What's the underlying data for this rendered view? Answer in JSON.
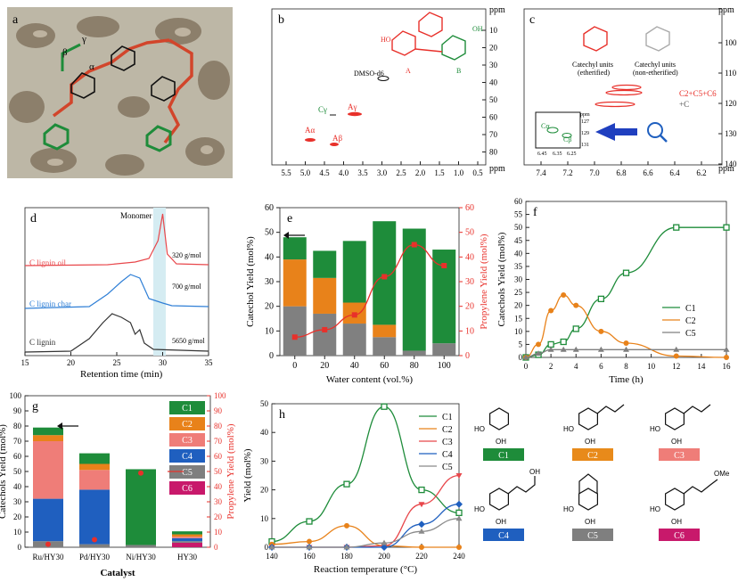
{
  "panels": {
    "a": {
      "letter": "a",
      "greek": [
        "γ",
        "β",
        "α"
      ]
    },
    "b": {
      "letter": "b",
      "unit_y": "ppm",
      "unit_x": "ppm",
      "yticks": [
        "10",
        "20",
        "30",
        "40",
        "50",
        "60",
        "70",
        "80"
      ],
      "xticks": [
        "5.5",
        "5.0",
        "4.5",
        "4.0",
        "3.5",
        "3.0",
        "2.5",
        "2.0",
        "1.5",
        "1.0",
        "0.5"
      ],
      "labels": {
        "dmso": "DMSO-d6",
        "a_ring": "A",
        "b_ring": "B",
        "cg": "Cγ",
        "ag": "Aγ",
        "aa": "Aα",
        "ab": "Aβ"
      }
    },
    "c": {
      "letter": "c",
      "unit_y": "ppm",
      "unit_x": "ppm",
      "yticks": [
        "100",
        "110",
        "120",
        "130",
        "140"
      ],
      "xticks": [
        "7.4",
        "7.2",
        "7.0",
        "6.8",
        "6.6",
        "6.4",
        "6.2"
      ],
      "unit_eth": "Catechyl units",
      "unit_eth2": "(etherified)",
      "unit_non": "Catechyl units",
      "unit_non2": "(non-etherified)",
      "sig1": "C2+C5+C6",
      "sig2": "+C",
      "inset": {
        "unit": "ppm",
        "yticks": [
          "127",
          "129",
          "131"
        ],
        "xticks": [
          "6.45",
          "6.35",
          "6.25"
        ],
        "c_alpha": "Cα",
        "c_beta": "Cβ"
      }
    },
    "d": {
      "letter": "d",
      "monomer": "Monomer",
      "xlabel": "Retention time (min)",
      "xticks": [
        "15",
        "20",
        "25",
        "30",
        "35"
      ],
      "traces": [
        {
          "name": "C lignin oil",
          "mw": "320 g/mol",
          "color": "#e8474b"
        },
        {
          "name": "C lignin char",
          "mw": "700 g/mol",
          "color": "#2f7fd6"
        },
        {
          "name": "C lignin",
          "mw": "5650 g/mol",
          "color": "#333333"
        }
      ]
    },
    "g_chem": {
      "labels": [
        "C1",
        "C2",
        "C3",
        "C4",
        "C5",
        "C6"
      ],
      "oh": "OH",
      "ho": "HO",
      "ome": "OMe",
      "colors": [
        "#1e8c3a",
        "#e88a1a",
        "#ef7d78",
        "#1f5fbf",
        "#7f7f7f",
        "#c8196b"
      ]
    }
  },
  "chart_data": [
    {
      "panel": "e",
      "type": "bar",
      "xlabel": "Water content (vol.%)",
      "ylabel": "Catechol Yield (mol%)",
      "ylabel2": "Propylene Yield (mol%)",
      "categories": [
        "0",
        "20",
        "40",
        "60",
        "80",
        "100"
      ],
      "ylim": [
        0,
        60
      ],
      "ylim2": [
        0,
        60
      ],
      "yticks": [
        "0",
        "10",
        "20",
        "30",
        "40",
        "50",
        "60"
      ],
      "series": [
        {
          "name": "C5",
          "color": "#808080",
          "values": [
            20,
            17,
            13,
            7.5,
            2,
            5
          ]
        },
        {
          "name": "C2",
          "color": "#e8821a",
          "values": [
            19,
            14.5,
            8.5,
            5,
            0,
            0
          ]
        },
        {
          "name": "C1",
          "color": "#1e8c3a",
          "values": [
            9,
            11,
            25,
            42,
            49.5,
            38
          ]
        }
      ],
      "propylene": {
        "color": "#e8302a",
        "x": [
          0,
          20,
          40,
          60,
          80,
          100
        ],
        "values": [
          7.5,
          10.5,
          16.5,
          32,
          45,
          36.5
        ]
      }
    },
    {
      "panel": "f",
      "type": "line",
      "xlabel": "Time (h)",
      "ylabel": "Catechols Yield (mol%)",
      "xlim": [
        0,
        16
      ],
      "ylim": [
        0,
        60
      ],
      "xticks": [
        "0",
        "2",
        "4",
        "6",
        "8",
        "10",
        "12",
        "14",
        "16"
      ],
      "yticks": [
        "0",
        "5",
        "10",
        "15",
        "20",
        "25",
        "30",
        "35",
        "40",
        "45",
        "50",
        "55",
        "60"
      ],
      "series": [
        {
          "name": "C1",
          "color": "#1e8c3a",
          "x": [
            0,
            1,
            2,
            3,
            4,
            6,
            8,
            12,
            16
          ],
          "values": [
            0,
            1,
            5,
            6,
            11,
            22.5,
            32.5,
            50,
            50
          ]
        },
        {
          "name": "C2",
          "color": "#e8821a",
          "x": [
            0,
            1,
            2,
            3,
            4,
            6,
            8,
            12,
            16
          ],
          "values": [
            0,
            5,
            18,
            24,
            20,
            10,
            5.5,
            0.5,
            0
          ]
        },
        {
          "name": "C5",
          "color": "#7f7f7f",
          "x": [
            0,
            1,
            2,
            3,
            4,
            6,
            8,
            12,
            16
          ],
          "values": [
            0,
            1.5,
            3,
            3,
            3,
            3,
            3,
            3,
            3
          ]
        }
      ]
    },
    {
      "panel": "g",
      "type": "bar",
      "xlabel": "Catalyst",
      "ylabel": "Catechols Yield (mol%)",
      "ylabel2": "Propylene Yield (mol%)",
      "categories": [
        "Ru/HY30",
        "Pd/HY30",
        "Ni/HY30",
        "HY30"
      ],
      "ylim": [
        0,
        100
      ],
      "ylim2": [
        0,
        100
      ],
      "yticks": [
        "0",
        "10",
        "20",
        "30",
        "40",
        "50",
        "60",
        "70",
        "80",
        "90",
        "100"
      ],
      "series": [
        {
          "name": "C6",
          "color": "#c8196b",
          "values": [
            0,
            0,
            0,
            3
          ]
        },
        {
          "name": "C5",
          "color": "#7f7f7f",
          "values": [
            4,
            2,
            1.5,
            1
          ]
        },
        {
          "name": "C4",
          "color": "#1f5fbf",
          "values": [
            28,
            36,
            0,
            2
          ]
        },
        {
          "name": "C3",
          "color": "#ef7d78",
          "values": [
            38,
            13,
            0,
            1
          ]
        },
        {
          "name": "C2",
          "color": "#e8821a",
          "values": [
            4,
            4,
            0,
            1.5
          ]
        },
        {
          "name": "C1",
          "color": "#1e8c3a",
          "values": [
            5,
            7,
            50,
            2
          ]
        }
      ],
      "propylene": {
        "color": "#e8302a",
        "values": [
          2,
          5,
          49,
          0
        ]
      }
    },
    {
      "panel": "h",
      "type": "line",
      "xlabel": "Reaction temperature (°C)",
      "ylabel": "Yield (mol%)",
      "xlim": [
        140,
        240
      ],
      "ylim": [
        0,
        50
      ],
      "xticks": [
        "140",
        "160",
        "180",
        "200",
        "220",
        "240"
      ],
      "yticks": [
        "0",
        "10",
        "20",
        "30",
        "40",
        "50"
      ],
      "series": [
        {
          "name": "C1",
          "color": "#1e8c3a",
          "x": [
            140,
            160,
            180,
            200,
            220,
            240
          ],
          "values": [
            2,
            9,
            22,
            49,
            20,
            12
          ]
        },
        {
          "name": "C2",
          "color": "#e8821a",
          "x": [
            140,
            160,
            180,
            200,
            220,
            240
          ],
          "values": [
            1,
            2,
            7.5,
            0.5,
            0,
            0
          ]
        },
        {
          "name": "C3",
          "color": "#e8474b",
          "x": [
            140,
            160,
            180,
            200,
            220,
            240
          ],
          "values": [
            0,
            0,
            0,
            0.5,
            15,
            25
          ]
        },
        {
          "name": "C4",
          "color": "#1f5fbf",
          "x": [
            140,
            160,
            180,
            200,
            220,
            240
          ],
          "values": [
            0,
            0,
            0,
            0,
            8,
            15
          ]
        },
        {
          "name": "C5",
          "color": "#8a8a8a",
          "x": [
            140,
            160,
            180,
            200,
            220,
            240
          ],
          "values": [
            0,
            0,
            0,
            1.5,
            5.5,
            10
          ]
        }
      ]
    }
  ]
}
